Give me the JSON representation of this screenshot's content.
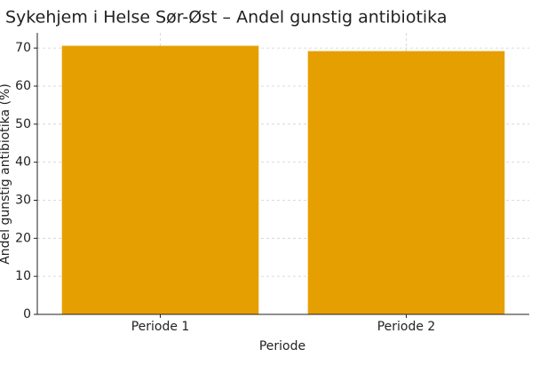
{
  "chart_data": {
    "type": "bar",
    "title": "Sykehjem i Helse Sør-Øst – Andel gunstig antibiotika",
    "x_label": "Periode",
    "y_label": "Andel gunstig antibiotika (%)",
    "categories": [
      "Periode 1",
      "Periode 2"
    ],
    "values": [
      70.6,
      69.2
    ],
    "color": "#e69f00",
    "ylim": [
      0,
      74
    ],
    "yticks": [
      0,
      10,
      20,
      30,
      40,
      50,
      60,
      70
    ],
    "grid": true
  }
}
